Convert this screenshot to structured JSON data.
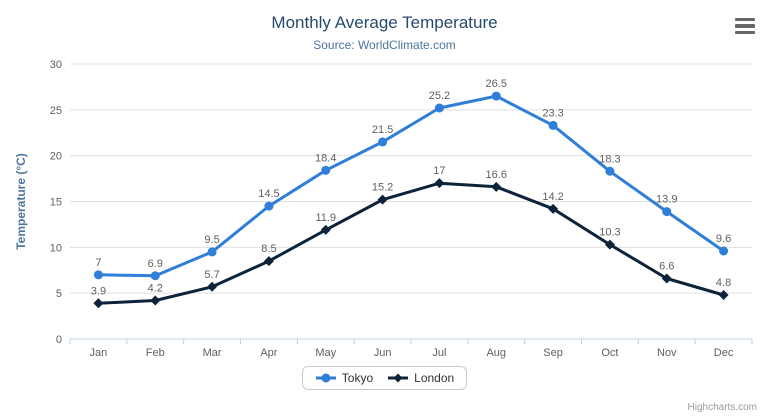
{
  "chart": {
    "title": "Monthly Average Temperature",
    "subtitle": "Source: WorldClimate.com",
    "credits": "Highcharts.com",
    "context_menu_icon": "hamburger-menu-icon"
  },
  "chart_data": {
    "type": "line",
    "title": "Monthly Average Temperature",
    "subtitle": "Source: WorldClimate.com",
    "categories": [
      "Jan",
      "Feb",
      "Mar",
      "Apr",
      "May",
      "Jun",
      "Jul",
      "Aug",
      "Sep",
      "Oct",
      "Nov",
      "Dec"
    ],
    "series": [
      {
        "name": "Tokyo",
        "color": "#2f7ed8",
        "marker": "circle",
        "values": [
          7,
          6.9,
          9.5,
          14.5,
          18.4,
          21.5,
          25.2,
          26.5,
          23.3,
          18.3,
          13.9,
          9.6
        ]
      },
      {
        "name": "London",
        "color": "#0d233a",
        "marker": "diamond",
        "values": [
          3.9,
          4.2,
          5.7,
          8.5,
          11.9,
          15.2,
          17,
          16.6,
          14.2,
          10.3,
          6.6,
          4.8
        ]
      }
    ],
    "xlabel": "",
    "ylabel": "Temperature (°C)",
    "ylim": [
      0,
      30
    ],
    "ytick_interval": 5,
    "ytick_labels": [
      "0",
      "5",
      "10",
      "15",
      "20",
      "25",
      "30"
    ],
    "grid": true,
    "data_labels": true,
    "legend_position": "bottom"
  },
  "colors": {
    "title": "#274b6d",
    "subtitle": "#4d759e",
    "axis_title": "#4d759e",
    "axis_labels": "#606060",
    "data_labels": "#606060",
    "gridline": "#e0e0e0",
    "axis_line": "#c0d0e0",
    "legend_text": "#333333",
    "credits": "#999999",
    "menu_icon": "#666666"
  }
}
